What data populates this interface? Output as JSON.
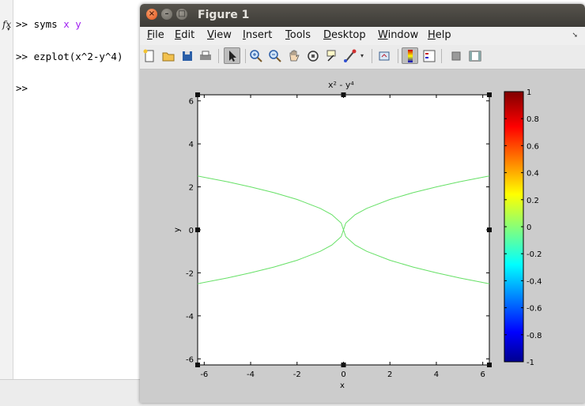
{
  "command_window": {
    "lines": [
      {
        "prompt": ">>",
        "cmd": "syms",
        "args": " x y"
      },
      {
        "prompt": ">>",
        "cmd": "ezplot(x^2-y^4)",
        "args": ""
      },
      {
        "prompt": ">>",
        "cmd": "",
        "args": ""
      }
    ]
  },
  "figure": {
    "title": "Figure 1",
    "menu": [
      "File",
      "Edit",
      "View",
      "Insert",
      "Tools",
      "Desktop",
      "Window",
      "Help"
    ],
    "toolbar": {
      "icons": [
        "new-figure",
        "open-file",
        "save",
        "print",
        "edit-plot-arrow",
        "zoom-in",
        "zoom-out",
        "pan-hand",
        "rotate-3d",
        "data-cursor",
        "brush",
        "link-plot",
        "insert-colorbar",
        "insert-legend",
        "hide-plot-tools",
        "show-plot-tools"
      ]
    }
  },
  "chart_data": {
    "type": "line",
    "title": "x² - y⁴",
    "xlabel": "x",
    "ylabel": "y",
    "xlim": [
      -6.283,
      6.283
    ],
    "ylim": [
      -6.283,
      6.283
    ],
    "xticks": [
      "-6",
      "-4",
      "-2",
      "0",
      "2",
      "4",
      "6"
    ],
    "yticks": [
      "6",
      "4",
      "2",
      "0",
      "-2",
      "-4",
      "-6"
    ],
    "curve_color": "#66e066",
    "series": [
      {
        "x": [
          -6.283,
          -5.0,
          -4.0,
          -3.0,
          -2.0,
          -1.0,
          -0.5,
          -0.1,
          0.0
        ],
        "y": [
          2.507,
          2.236,
          2.0,
          1.732,
          1.414,
          1.0,
          0.707,
          0.316,
          0.0
        ]
      },
      {
        "x": [
          0.0,
          0.1,
          0.5,
          1.0,
          2.0,
          3.0,
          4.0,
          5.0,
          6.283
        ],
        "y": [
          0.0,
          0.316,
          0.707,
          1.0,
          1.414,
          1.732,
          2.0,
          2.236,
          2.507
        ]
      },
      {
        "x": [
          -6.283,
          -5.0,
          -4.0,
          -3.0,
          -2.0,
          -1.0,
          -0.5,
          -0.1,
          0.0
        ],
        "y": [
          -2.507,
          -2.236,
          -2.0,
          -1.732,
          -1.414,
          -1.0,
          -0.707,
          -0.316,
          0.0
        ]
      },
      {
        "x": [
          0.0,
          0.1,
          0.5,
          1.0,
          2.0,
          3.0,
          4.0,
          5.0,
          6.283
        ],
        "y": [
          0.0,
          -0.316,
          -0.707,
          -1.0,
          -1.414,
          -1.732,
          -2.0,
          -2.236,
          -2.507
        ]
      }
    ],
    "colorbar": {
      "range": [
        -1,
        1
      ],
      "ticks": [
        "1",
        "0.8",
        "0.6",
        "0.4",
        "0.2",
        "0",
        "-0.2",
        "-0.4",
        "-0.6",
        "-0.8",
        "-1"
      ],
      "colormap": "jet"
    }
  }
}
